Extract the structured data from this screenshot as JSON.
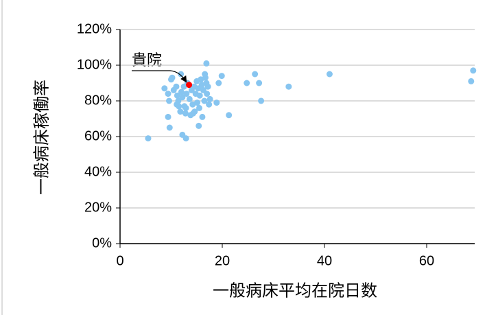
{
  "chart_data": {
    "type": "scatter",
    "xlabel": "一般病床平均在院日数",
    "ylabel": "一般病床稼働率",
    "annotation": "貴院",
    "xlim": [
      0,
      69.4
    ],
    "xticks": [
      0,
      20,
      40,
      60
    ],
    "ylim": [
      0,
      120
    ],
    "yticks": [
      {
        "value": 0,
        "label": "0%"
      },
      {
        "value": 20,
        "label": "20%"
      },
      {
        "value": 40,
        "label": "40%"
      },
      {
        "value": 60,
        "label": "60%"
      },
      {
        "value": 80,
        "label": "80%"
      },
      {
        "value": 100,
        "label": "100%"
      },
      {
        "value": 120,
        "label": "120%"
      }
    ],
    "grid": true,
    "series": [
      {
        "color": "#87c5f0",
        "x": [
          5.5,
          9.7,
          9.4,
          12.2,
          12.9,
          15.4,
          21.3,
          18.9,
          24.8,
          26.4,
          27.2,
          27.6,
          33,
          41,
          69.1,
          68.7,
          19.9,
          19.3,
          16.9,
          11.9,
          8.7,
          9.4,
          9.6,
          10,
          10.2,
          10.5,
          11,
          11.2,
          11.4,
          11.5,
          11.8,
          12,
          12.2,
          12.5,
          12.6,
          12.8,
          13,
          13.2,
          13.6,
          13.8,
          14,
          14.2,
          14.5,
          14.6,
          14.8,
          15,
          15.1,
          15.3,
          15.5,
          15.6,
          15.8,
          16,
          16.1,
          16.3,
          16.5,
          16.7,
          16.9,
          17,
          17.2,
          17.4,
          17.6,
          16.6,
          14.3,
          12.9,
          11.1
        ],
        "values": [
          59,
          65,
          71,
          61,
          59,
          66,
          72,
          79,
          90,
          95,
          90,
          80,
          88,
          95,
          97,
          91,
          94,
          90,
          101,
          95,
          87,
          84,
          80,
          92,
          93,
          86,
          88,
          83,
          80,
          77,
          74,
          85,
          82,
          88,
          77,
          73,
          84,
          90,
          81,
          72,
          86,
          78,
          88,
          74,
          84,
          91,
          79,
          87,
          76,
          83,
          92,
          89,
          71,
          86,
          80,
          93,
          90,
          84,
          88,
          78,
          81,
          95,
          73,
          76,
          78
        ]
      },
      {
        "color": "#ff0000",
        "x": [
          13.5
        ],
        "values": [
          89
        ]
      }
    ]
  }
}
